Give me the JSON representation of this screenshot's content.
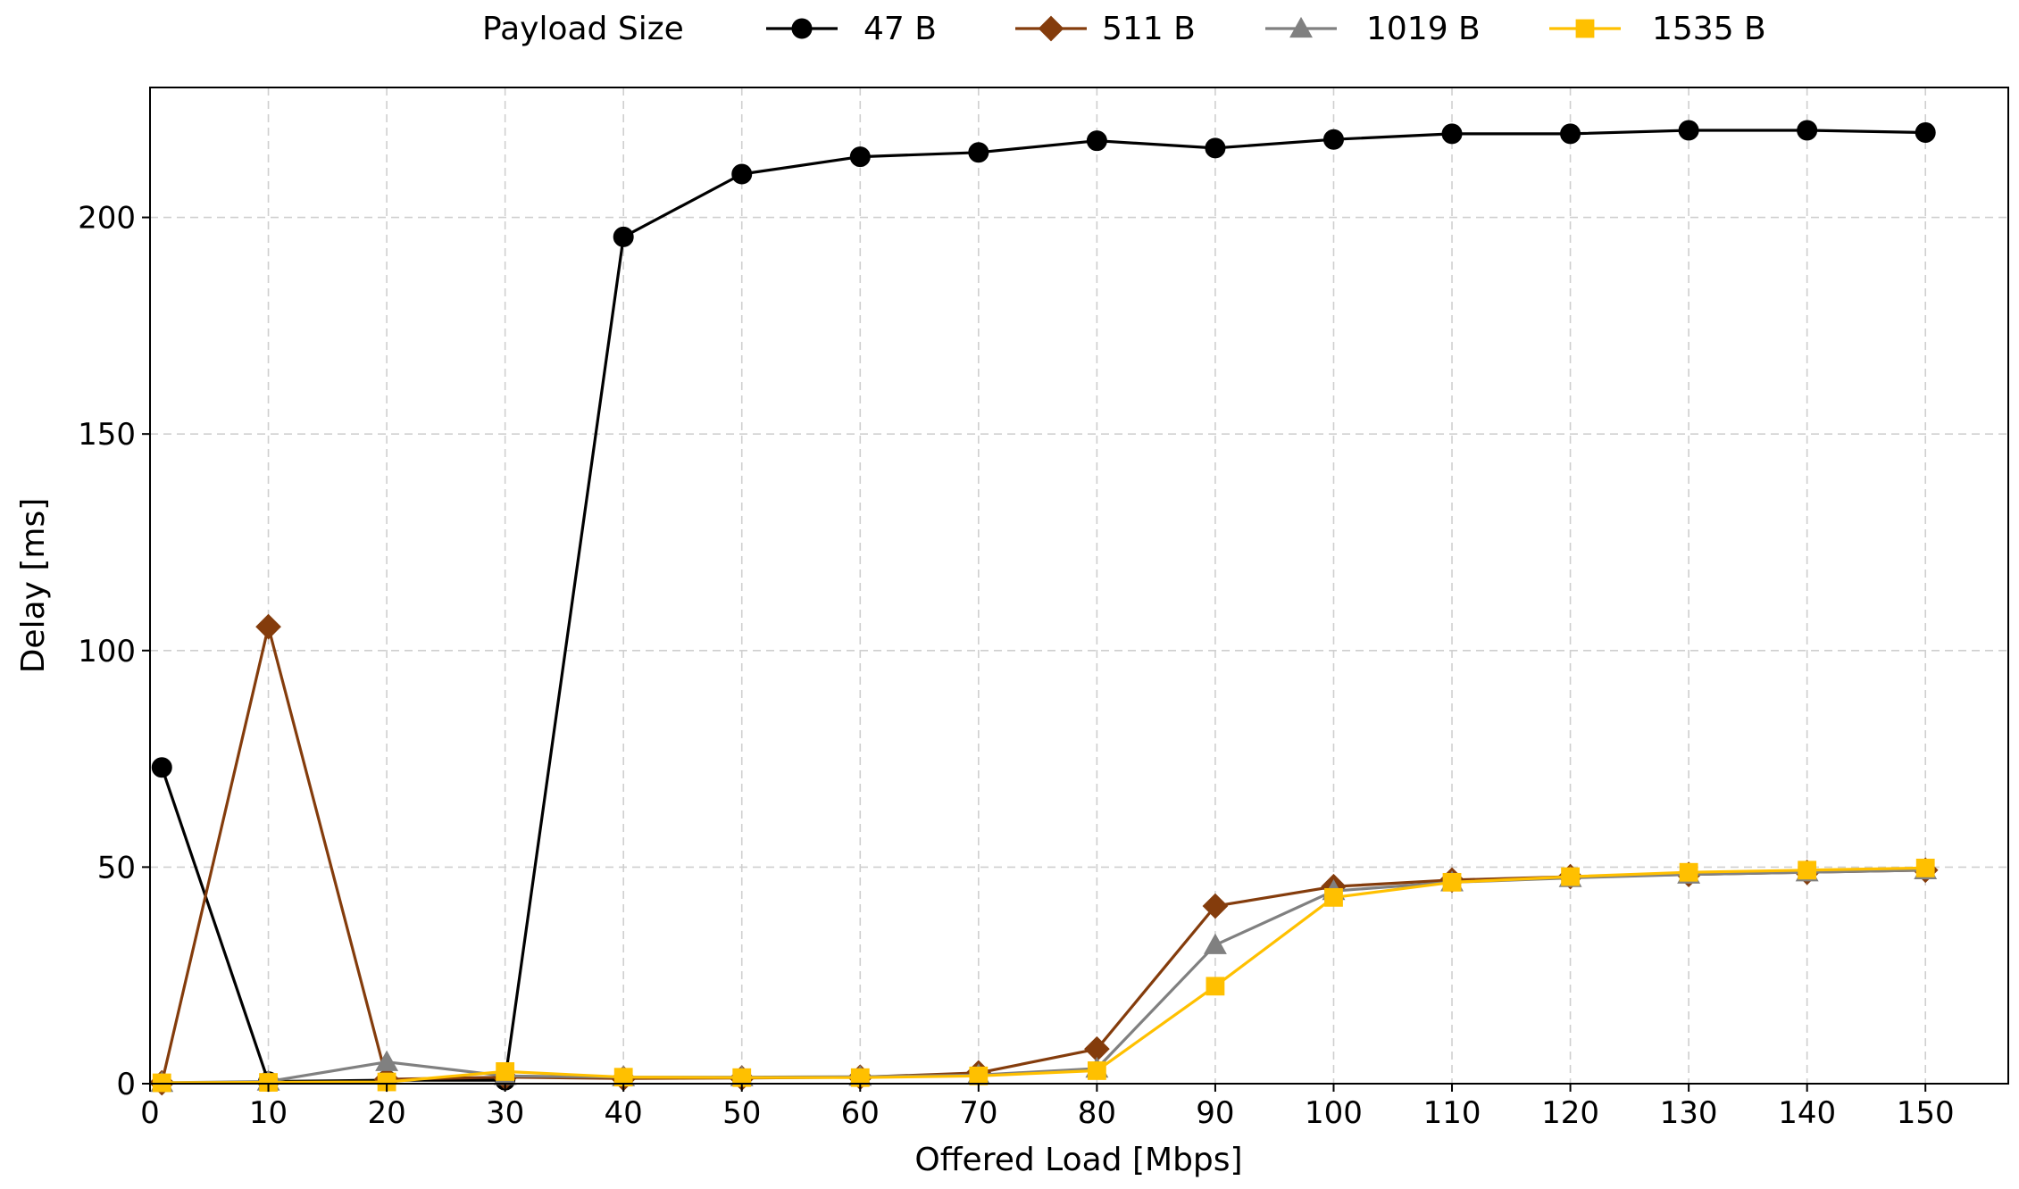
{
  "chart_data": {
    "type": "line",
    "title": "",
    "xlabel": "Offered Load [Mbps]",
    "ylabel": "Delay [ms]",
    "xlim": [
      0,
      157
    ],
    "ylim": [
      0,
      230
    ],
    "xticks": [
      0,
      10,
      20,
      30,
      40,
      50,
      60,
      70,
      80,
      90,
      100,
      110,
      120,
      130,
      140,
      150
    ],
    "yticks": [
      0,
      50,
      100,
      150,
      200
    ],
    "grid": true,
    "legend": {
      "placement": "top-center, above plot",
      "title": "Payload Size"
    },
    "x": [
      1,
      10,
      20,
      30,
      40,
      50,
      60,
      70,
      80,
      90,
      100,
      110,
      120,
      130,
      140,
      150
    ],
    "series": [
      {
        "name": "47 B",
        "color": "#000000",
        "marker": "circle",
        "values": [
          73,
          0.5,
          0.8,
          0.8,
          195.5,
          210,
          214,
          215,
          217.7,
          216,
          218,
          219.3,
          219.3,
          220.1,
          220.1,
          219.6
        ]
      },
      {
        "name": "511 B",
        "color": "#843C0C",
        "marker": "diamond",
        "values": [
          0.2,
          105.5,
          1.0,
          1.5,
          1.2,
          1.3,
          1.5,
          2.5,
          8.0,
          41,
          45.5,
          47,
          47.8,
          48.3,
          48.8,
          49.3
        ]
      },
      {
        "name": "1019 B",
        "color": "#808080",
        "marker": "triangle",
        "values": [
          0.2,
          0.5,
          5.0,
          1.8,
          1.5,
          1.5,
          1.6,
          2.0,
          3.5,
          32,
          44.5,
          46.5,
          47.5,
          48.3,
          48.8,
          49.3
        ]
      },
      {
        "name": "1535 B",
        "color": "#FFC000",
        "marker": "square",
        "values": [
          0.2,
          0.3,
          0.4,
          2.8,
          1.5,
          1.4,
          1.4,
          1.8,
          3.0,
          22.5,
          43,
          46.5,
          47.8,
          48.8,
          49.3,
          49.8
        ]
      }
    ]
  }
}
